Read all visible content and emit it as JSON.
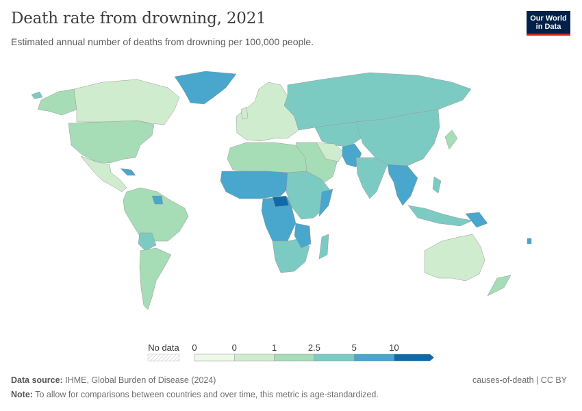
{
  "header": {
    "title": "Death rate from drowning, 2021",
    "subtitle": "Estimated annual number of deaths from drowning per 100,000 people.",
    "logo_line1": "Our World",
    "logo_line2": "in Data"
  },
  "legend": {
    "no_data_label": "No data",
    "ticks": [
      "0",
      "0",
      "1",
      "2.5",
      "5",
      "10"
    ],
    "bins": [
      {
        "color": "#eef8e8"
      },
      {
        "color": "#cfecce"
      },
      {
        "color": "#a6dcb6"
      },
      {
        "color": "#7ccbc3"
      },
      {
        "color": "#49a6cc"
      },
      {
        "color": "#0f6aa8"
      }
    ]
  },
  "colors": {
    "no_data": "#eeeeee",
    "ocean": "#ffffff",
    "border": "#9a9a9a"
  },
  "footer": {
    "source_label": "Data source:",
    "source_text": "IHME, Global Burden of Disease (2024)",
    "note_label": "Note:",
    "note_text": "To allow for comparisons between countries and over time, this metric is age-standardized.",
    "right_text": "causes-of-death | CC BY"
  }
}
